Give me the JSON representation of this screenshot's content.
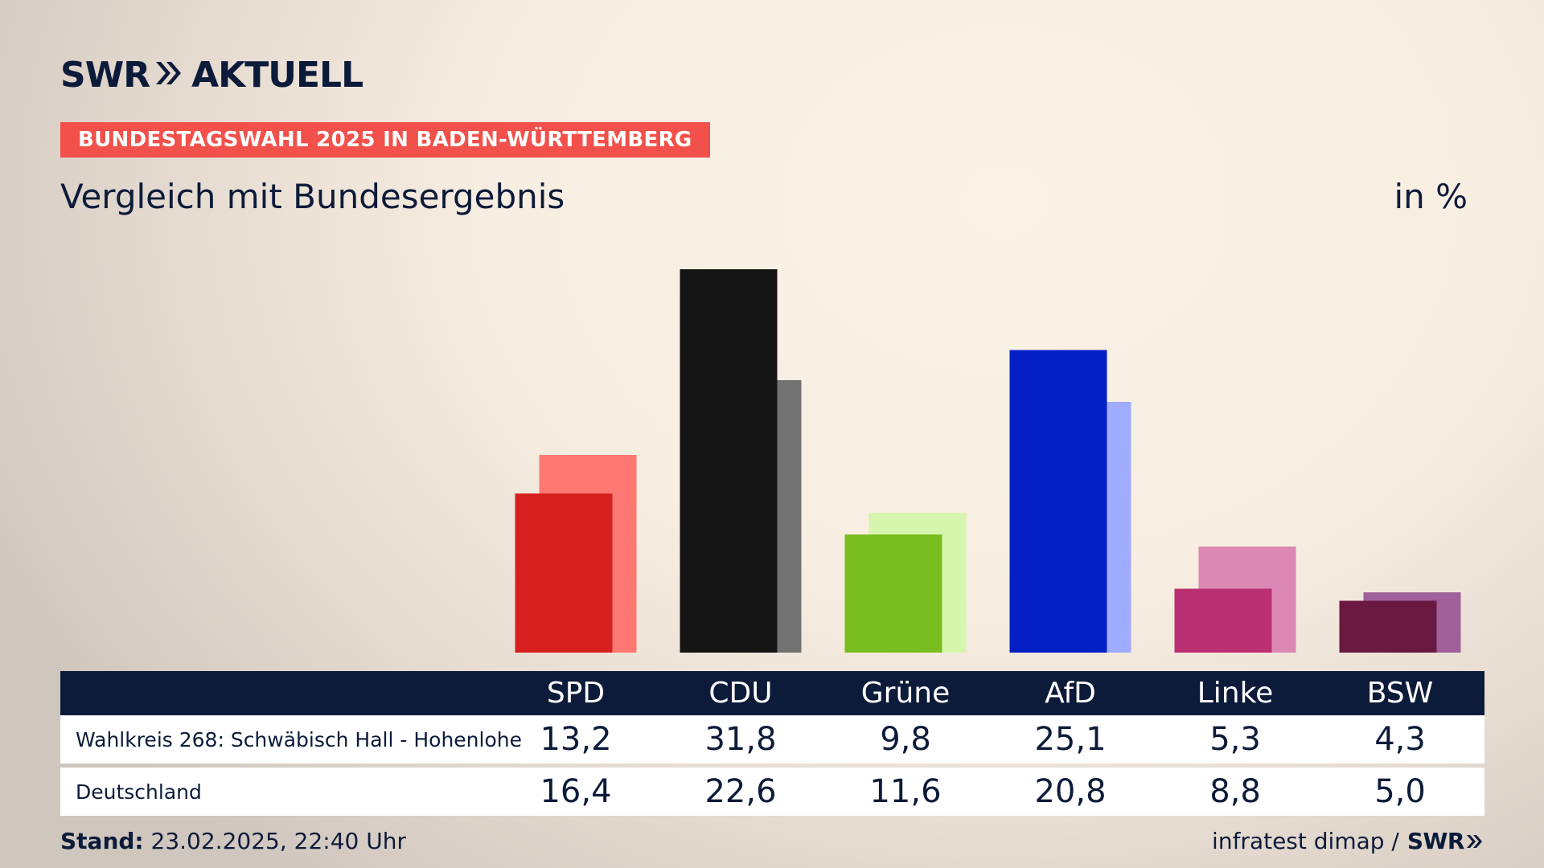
{
  "brand": {
    "name": "SWR",
    "product": "AKTUELL"
  },
  "banner": "BUNDESTAGSWAHL 2025 IN BADEN-WÜRTTEMBERG",
  "subtitle": "Vergleich mit Bundesergebnis",
  "unit": "in %",
  "table": {
    "rows": [
      {
        "label": "Wahlkreis 268: Schwäbisch Hall - Hohenlohe",
        "values": [
          "13,2",
          "31,8",
          "9,8",
          "25,1",
          "5,3",
          "4,3"
        ]
      },
      {
        "label": "Deutschland",
        "values": [
          "16,4",
          "22,6",
          "11,6",
          "20,8",
          "8,8",
          "5,0"
        ]
      }
    ]
  },
  "footer": {
    "stand_label": "Stand:",
    "stand_value": "23.02.2025, 22:40 Uhr",
    "source": "infratest dimap /",
    "source_brand": "SWR"
  },
  "chart_data": {
    "type": "bar",
    "categories": [
      "SPD",
      "CDU",
      "Grüne",
      "AfD",
      "Linke",
      "BSW"
    ],
    "series": [
      {
        "name": "Wahlkreis 268: Schwäbisch Hall - Hohenlohe",
        "values": [
          13.2,
          31.8,
          9.8,
          25.1,
          5.3,
          4.3
        ]
      },
      {
        "name": "Deutschland",
        "values": [
          16.4,
          22.6,
          11.6,
          20.8,
          8.8,
          5.0
        ]
      }
    ],
    "colors": {
      "wahlkreis": [
        "#d62020",
        "#141414",
        "#7abd1e",
        "#0320c6",
        "#bb2f73",
        "#6a1940"
      ],
      "deutschland": [
        "#fd7872",
        "#727272",
        "#d6f6ae",
        "#a0acff",
        "#dc88b4",
        "#a0609a"
      ]
    },
    "title": "Vergleich mit Bundesergebnis",
    "ylabel": "in %",
    "ylim": [
      0,
      31.8
    ]
  }
}
